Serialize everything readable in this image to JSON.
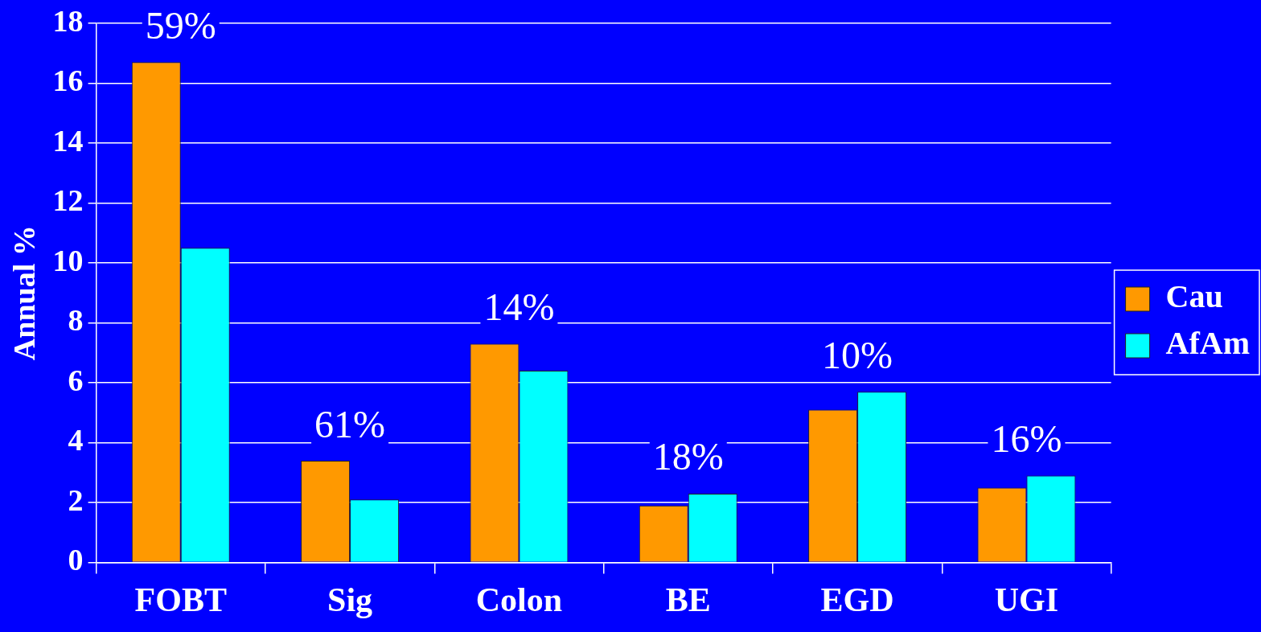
{
  "chart_data": {
    "type": "bar",
    "ylabel": "Annual %",
    "categories": [
      "FOBT",
      "Sig",
      "Colon",
      "BE",
      "EGD",
      "UGI"
    ],
    "series": [
      {
        "name": "Cau",
        "color": "#ff9900",
        "values": [
          16.7,
          3.4,
          7.3,
          1.9,
          5.1,
          2.5
        ]
      },
      {
        "name": "AfAm",
        "color": "#00ffff",
        "values": [
          10.5,
          2.1,
          6.4,
          2.3,
          5.7,
          2.9
        ]
      }
    ],
    "ylim": [
      0,
      18
    ],
    "yticks": [
      0,
      2,
      4,
      6,
      8,
      10,
      12,
      14,
      16,
      18
    ],
    "grid": "y",
    "legend": "right",
    "annotations": [
      "59%",
      "61%",
      "14%",
      "18%",
      "10%",
      "16%"
    ]
  }
}
